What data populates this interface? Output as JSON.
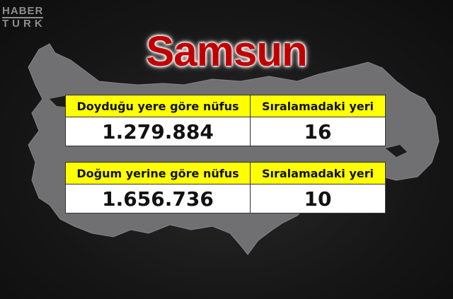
{
  "logo": {
    "line1": "HABER",
    "line2": "TURK"
  },
  "title": "Samsun",
  "tables": [
    {
      "header": [
        "Doyduğu yere göre nüfus",
        "Sıralamadaki yeri"
      ],
      "values": [
        "1.279.884",
        "16"
      ]
    },
    {
      "header": [
        "Doğum yerine göre nüfus",
        "Sıralamadaki yeri"
      ],
      "values": [
        "1.656.736",
        "10"
      ]
    }
  ],
  "colors": {
    "title": "#c00000",
    "header_bg": "#ffff00",
    "map": "#6e6e70",
    "background": "#161616"
  }
}
